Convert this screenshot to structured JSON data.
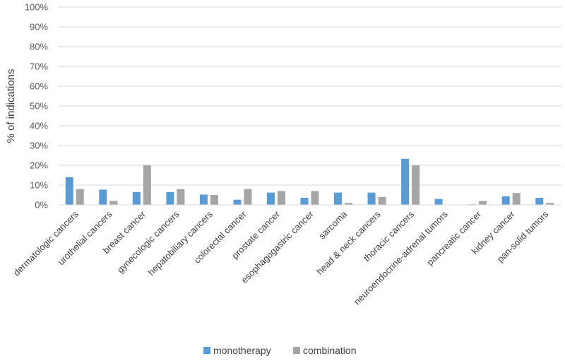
{
  "chart_data": {
    "type": "bar",
    "title": "",
    "xlabel": "",
    "ylabel": "% of indications",
    "ylim": [
      0,
      100
    ],
    "yticks": [
      "0%",
      "10%",
      "20%",
      "30%",
      "40%",
      "50%",
      "60%",
      "70%",
      "80%",
      "90%",
      "100%"
    ],
    "grid": true,
    "legend_position": "bottom",
    "categories": [
      "dermatologic cancers",
      "urothelial cancers",
      "breast cancer",
      "gynecologic cancers",
      "hepatobiliary cancers",
      "colorectal cancer",
      "prostate cancer",
      "esophagogastric cancer",
      "sarcoma",
      "head & neck cancers",
      "thoracic cancers",
      "neuroendocrine-adrenal tumors",
      "pancreatic cancer",
      "kidney cancer",
      "pan-solid tumors"
    ],
    "series": [
      {
        "name": "monotherapy",
        "color": "#5b9bd5",
        "values": [
          14,
          7.7,
          6.5,
          6.5,
          5.2,
          2.6,
          6.2,
          3.6,
          6.2,
          6.2,
          23.3,
          3.0,
          0.3,
          4.3,
          3.6
        ]
      },
      {
        "name": "combination",
        "color": "#a5a5a5",
        "values": [
          8,
          2,
          20,
          8,
          5,
          8,
          7,
          7,
          1,
          4,
          20,
          0,
          2,
          6,
          1
        ]
      }
    ]
  }
}
